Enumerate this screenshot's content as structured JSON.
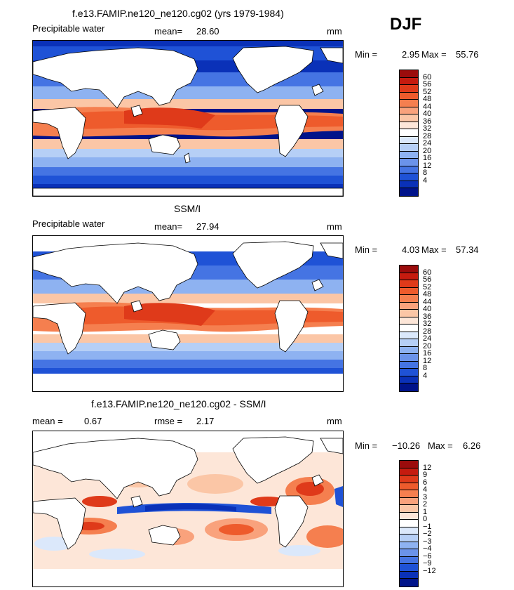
{
  "season": "DJF",
  "panels": [
    {
      "id": "model",
      "title": "f.e13.FAMIP.ne120_ne120.cg02 (yrs 1979-1984)",
      "variable": "Precipitable water",
      "mean_label": "mean=",
      "mean_value": "28.60",
      "units": "mm",
      "min_label": "Min =",
      "min_value": "2.95",
      "max_label": "Max =",
      "max_value": "55.76"
    },
    {
      "id": "obs",
      "title": "SSM/I",
      "variable": "Precipitable water",
      "mean_label": "mean=",
      "mean_value": "27.94",
      "units": "mm",
      "min_label": "Min =",
      "min_value": "4.03",
      "max_label": "Max =",
      "max_value": "57.34"
    },
    {
      "id": "diff",
      "title": "f.e13.FAMIP.ne120_ne120.cg02 - SSM/I",
      "mean_label": "mean =",
      "mean_value": "0.67",
      "rmse_label": "rmse =",
      "rmse_value": "2.17",
      "units": "mm",
      "min_label": "Min =",
      "min_value": "−10.26",
      "max_label": "Max =",
      "max_value": "6.26"
    }
  ],
  "legend_abs": {
    "labels": [
      "60",
      "56",
      "52",
      "48",
      "44",
      "40",
      "36",
      "32",
      "28",
      "24",
      "20",
      "16",
      "12",
      "8",
      "4"
    ],
    "colors": [
      "#9b0c0c",
      "#c51b0f",
      "#df3a1a",
      "#ee5b2c",
      "#f57f4f",
      "#f9a27c",
      "#fbc6a6",
      "#fde6d8",
      "#ffffff",
      "#dbe8fb",
      "#b6cff6",
      "#8eb2f1",
      "#6b93ea",
      "#4574e3",
      "#1f52d6",
      "#0a31b8",
      "#00138a"
    ]
  },
  "legend_diff": {
    "labels": [
      "12",
      "9",
      "6",
      "4",
      "3",
      "2",
      "1",
      "0",
      "−1",
      "−2",
      "−3",
      "−4",
      "−6",
      "−9",
      "−12"
    ],
    "colors": [
      "#9b0c0c",
      "#c51b0f",
      "#df3a1a",
      "#ee5b2c",
      "#f57f4f",
      "#f9a27c",
      "#fbc6a6",
      "#fde6d8",
      "#ffffff",
      "#dbe8fb",
      "#b6cff6",
      "#8eb2f1",
      "#6b93ea",
      "#4574e3",
      "#1f52d6",
      "#0a31b8",
      "#00138a"
    ]
  }
}
